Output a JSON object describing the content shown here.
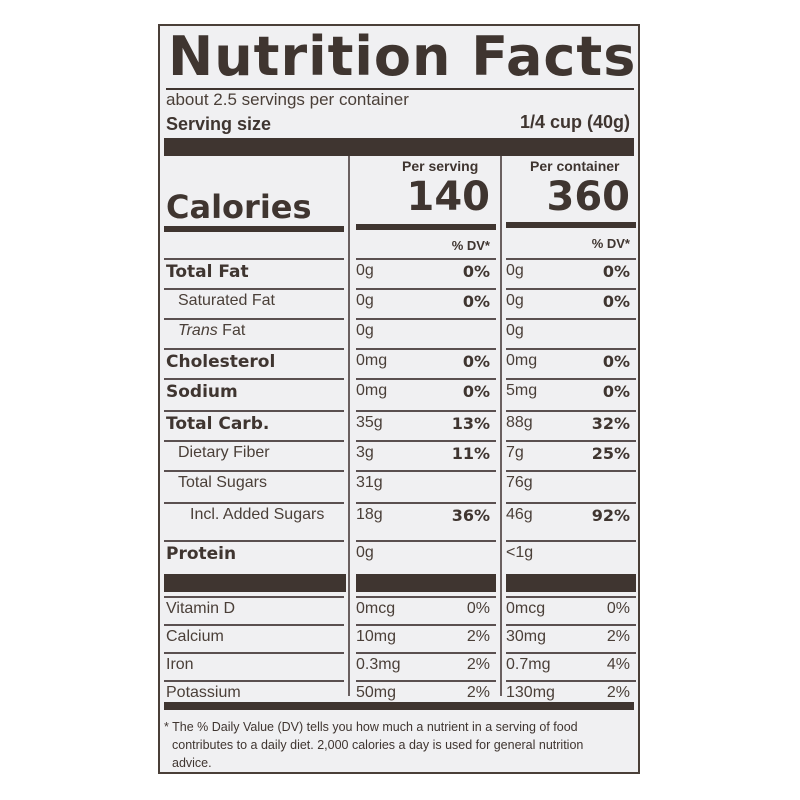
{
  "label": {
    "title": "Nutrition Facts",
    "servings_per_container": "about 2.5 servings per container",
    "serving_size_label": "Serving size",
    "serving_size_value": "1/4 cup (40g)",
    "columns": {
      "per_serving": "Per serving",
      "per_container": "Per container",
      "dv_header": "% DV*"
    },
    "calories": {
      "label": "Calories",
      "per_serving": "140",
      "per_container": "360"
    },
    "nutrients": [
      {
        "name": "Total Fat",
        "bold": true,
        "indent": 0,
        "serving_amt": "0g",
        "serving_dv": "0%",
        "container_amt": "0g",
        "container_dv": "0%"
      },
      {
        "name": "Saturated Fat",
        "bold": false,
        "indent": 1,
        "serving_amt": "0g",
        "serving_dv": "0%",
        "container_amt": "0g",
        "container_dv": "0%"
      },
      {
        "name": "Trans Fat",
        "bold": false,
        "indent": 1,
        "serving_amt": "0g",
        "serving_dv": "",
        "container_amt": "0g",
        "container_dv": ""
      },
      {
        "name": "Cholesterol",
        "bold": true,
        "indent": 0,
        "serving_amt": "0mg",
        "serving_dv": "0%",
        "container_amt": "0mg",
        "container_dv": "0%"
      },
      {
        "name": "Sodium",
        "bold": true,
        "indent": 0,
        "serving_amt": "0mg",
        "serving_dv": "0%",
        "container_amt": "5mg",
        "container_dv": "0%"
      },
      {
        "name": "Total Carb.",
        "bold": true,
        "indent": 0,
        "serving_amt": "35g",
        "serving_dv": "13%",
        "container_amt": "88g",
        "container_dv": "32%"
      },
      {
        "name": "Dietary Fiber",
        "bold": false,
        "indent": 1,
        "serving_amt": "3g",
        "serving_dv": "11%",
        "container_amt": "7g",
        "container_dv": "25%"
      },
      {
        "name": "Total Sugars",
        "bold": false,
        "indent": 1,
        "serving_amt": "31g",
        "serving_dv": "",
        "container_amt": "76g",
        "container_dv": ""
      },
      {
        "name": "Incl. Added Sugars",
        "bold": false,
        "indent": 2,
        "serving_amt": "18g",
        "serving_dv": "36%",
        "container_amt": "46g",
        "container_dv": "92%"
      },
      {
        "name": "Protein",
        "bold": true,
        "indent": 0,
        "serving_amt": "0g",
        "serving_dv": "",
        "container_amt": "<1g",
        "container_dv": ""
      }
    ],
    "trans_prefix": "Trans",
    "trans_suffix": "Fat",
    "vitamins": [
      {
        "name": "Vitamin D",
        "serving_amt": "0mcg",
        "serving_dv": "0%",
        "container_amt": "0mcg",
        "container_dv": "0%"
      },
      {
        "name": "Calcium",
        "serving_amt": "10mg",
        "serving_dv": "2%",
        "container_amt": "30mg",
        "container_dv": "2%"
      },
      {
        "name": "Iron",
        "serving_amt": "0.3mg",
        "serving_dv": "2%",
        "container_amt": "0.7mg",
        "container_dv": "4%"
      },
      {
        "name": "Potassium",
        "serving_amt": "50mg",
        "serving_dv": "2%",
        "container_amt": "130mg",
        "container_dv": "2%"
      }
    ],
    "footnote_line1": "* The % Daily Value (DV) tells you how much a nutrient in a serving of food",
    "footnote_line2": "contributes to a daily diet. 2,000 calories a day is used for general nutrition",
    "footnote_line3": "advice."
  },
  "colors": {
    "ink": "#3f3530",
    "background": "#f0f0f2"
  }
}
